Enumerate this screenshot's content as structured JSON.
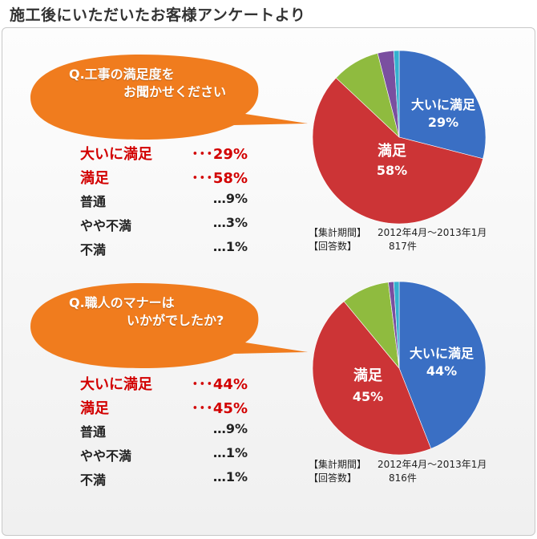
{
  "page_title": "施工後にいただいたお客様アンケートより",
  "colors": {
    "bubble": "#f07c1e",
    "highlight": "#d20000",
    "pie": [
      "#3a6fc4",
      "#cc3436",
      "#8fbb3f",
      "#7a4fa0",
      "#33b1cf"
    ]
  },
  "surveys": [
    {
      "question_line1": "Q.工事の満足度を",
      "question_line2": "お聞かせください",
      "results": [
        {
          "label": "大いに満足",
          "value": "･･･29%"
        },
        {
          "label": "満足",
          "value": "･･･58%"
        },
        {
          "label": "普通",
          "value": "…9%"
        },
        {
          "label": "やや不満",
          "value": "…3%"
        },
        {
          "label": "不満",
          "value": "…1%"
        }
      ],
      "pie_labels": [
        {
          "name": "大いに満足",
          "pct": "29%"
        },
        {
          "name": "満足",
          "pct": "58%"
        }
      ],
      "period_label": "【集計期間】",
      "period_value": "2012年4月～2013年1月",
      "count_label": "【回答数】",
      "count_value": "817件"
    },
    {
      "question_line1": "Q.職人のマナーは",
      "question_line2": "いかがでしたか?",
      "results": [
        {
          "label": "大いに満足",
          "value": "･･･44%"
        },
        {
          "label": "満足",
          "value": "･･･45%"
        },
        {
          "label": "普通",
          "value": "…9%"
        },
        {
          "label": "やや不満",
          "value": "…1%"
        },
        {
          "label": "不満",
          "value": "…1%"
        }
      ],
      "pie_labels": [
        {
          "name": "大いに満足",
          "pct": "44%"
        },
        {
          "name": "満足",
          "pct": "45%"
        }
      ],
      "period_label": "【集計期間】",
      "period_value": "2012年4月～2013年1月",
      "count_label": "【回答数】",
      "count_value": "816件"
    }
  ],
  "chart_data": [
    {
      "type": "pie",
      "categories": [
        "大いに満足",
        "満足",
        "普通",
        "やや不満",
        "不満"
      ],
      "values": [
        29,
        58,
        9,
        3,
        1
      ]
    },
    {
      "type": "pie",
      "categories": [
        "大いに満足",
        "満足",
        "普通",
        "やや不満",
        "不満"
      ],
      "values": [
        44,
        45,
        9,
        1,
        1
      ]
    }
  ]
}
